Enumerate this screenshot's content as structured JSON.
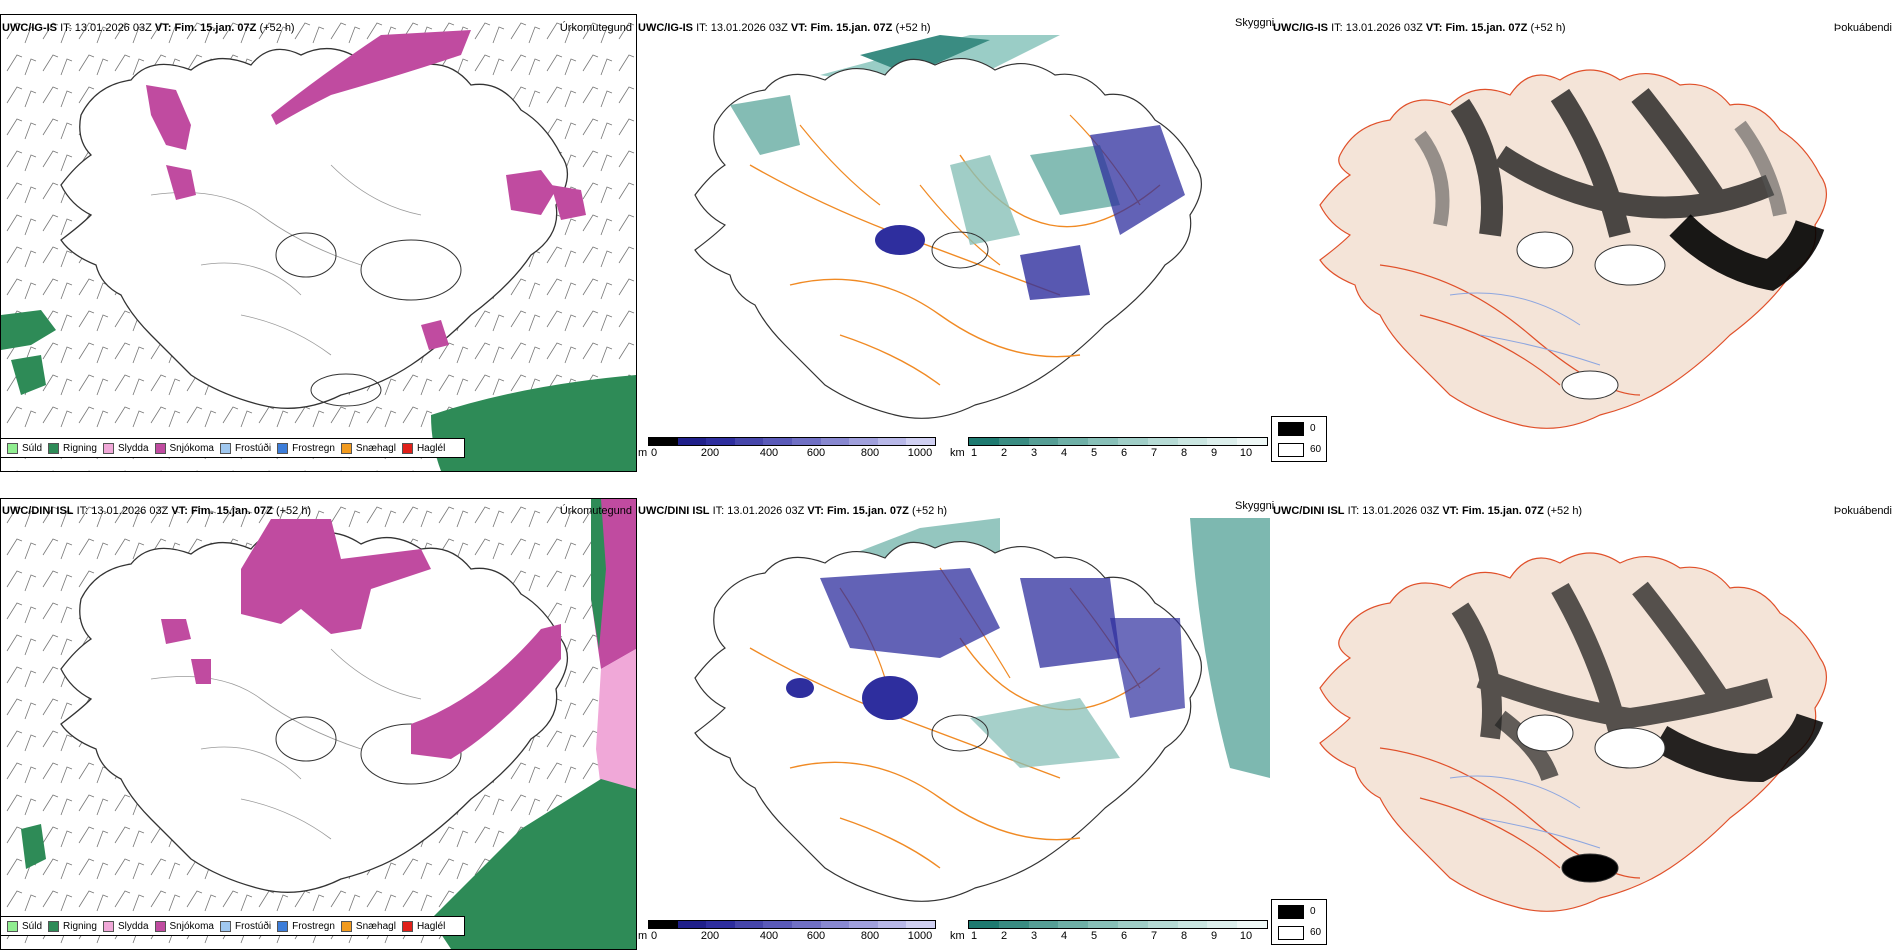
{
  "rows": [
    {
      "model": "UWC/IG-IS",
      "it_label": "IT:",
      "it_value": "13.01.2026 03Z",
      "vt_label": "VT:",
      "vt_value": "Fim. 15.jan. 07Z",
      "lead": "(+52 h)",
      "titles": [
        "Úrkomutegund",
        "Skyggni",
        "Þokuábendi"
      ]
    },
    {
      "model": "UWC/DINI ISL",
      "it_label": "IT:",
      "it_value": "13.01.2026 03Z",
      "vt_label": "VT:",
      "vt_value": "Fim. 15.jan. 07Z",
      "lead": "(+52 h)",
      "titles": [
        "Úrkomutegund",
        "Skyggni",
        "Þokuábendi"
      ]
    }
  ],
  "precip_legend": [
    {
      "label": "Súld",
      "color": "#90EE90"
    },
    {
      "label": "Rigning",
      "color": "#2E8B57"
    },
    {
      "label": "Slydda",
      "color": "#F0A8D8"
    },
    {
      "label": "Snjókoma",
      "color": "#C04BA0"
    },
    {
      "label": "Frostúði",
      "color": "#A0C8F0"
    },
    {
      "label": "Frostregn",
      "color": "#3C7DD9"
    },
    {
      "label": "Snæhagl",
      "color": "#F29B1F"
    },
    {
      "label": "Haglél",
      "color": "#E0201A"
    }
  ],
  "cloud_base_bar": {
    "unit": "m",
    "ticks": [
      "0",
      "200",
      "400",
      "600",
      "800",
      "1000"
    ],
    "colors": [
      "#000000",
      "#1f1f8a",
      "#2e2e9e",
      "#4646aa",
      "#5a5ab8",
      "#7070c4",
      "#8888d0",
      "#a0a0dc",
      "#b8b8e8",
      "#d0d0f2"
    ]
  },
  "visibility_bar": {
    "unit": "km",
    "ticks": [
      "1",
      "2",
      "3",
      "4",
      "5",
      "6",
      "7",
      "8",
      "9",
      "10"
    ],
    "colors": [
      "#1e7a70",
      "#3a8c82",
      "#569e95",
      "#6fb0a7",
      "#88c0b8",
      "#a0cec7",
      "#b6dbd5",
      "#cae6e1",
      "#dcefec",
      "#eef8f6"
    ]
  },
  "fog_legend": {
    "high": "0",
    "low": "60",
    "high_color": "#000000",
    "low_color": "#ffffff"
  }
}
